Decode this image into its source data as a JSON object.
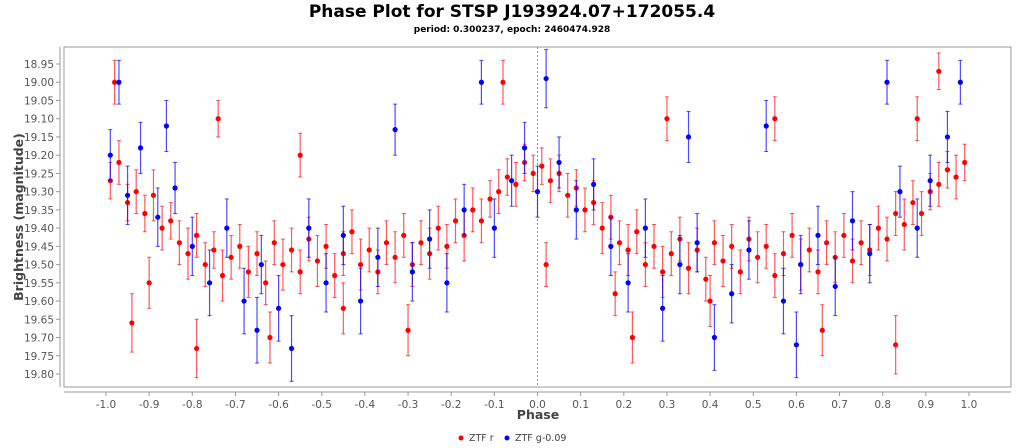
{
  "chart_data": {
    "type": "scatter",
    "title": "Phase Plot for STSP J193924.07+172055.4",
    "subtitle": "period: 0.300237, epoch: 2460474.928",
    "xlabel": "Phase",
    "ylabel": "Brightness (magnitude)",
    "xlim": [
      -1.08,
      1.09
    ],
    "ylim": [
      19.836,
      18.903
    ],
    "y_inverted": true,
    "xticks": [
      "-1.0",
      "-0.9",
      "-0.8",
      "-0.7",
      "-0.6",
      "-0.5",
      "-0.4",
      "-0.3",
      "-0.2",
      "-0.1",
      "0.0",
      "0.1",
      "0.2",
      "0.3",
      "0.4",
      "0.5",
      "0.6",
      "0.7",
      "0.8",
      "0.9",
      "1.0"
    ],
    "yticks": [
      "18.95",
      "19.00",
      "19.05",
      "19.10",
      "19.15",
      "19.20",
      "19.25",
      "19.30",
      "19.35",
      "19.40",
      "19.45",
      "19.50",
      "19.55",
      "19.60",
      "19.65",
      "19.70",
      "19.75",
      "19.80"
    ],
    "grid": false,
    "reference_line_phase": 0.0,
    "legend_position": "bottom-center",
    "series": [
      {
        "name": "ZTF r",
        "color": "#ff0000",
        "points_format": "[phase, magnitude, error]",
        "points": [
          [
            -0.99,
            19.27,
            0.05
          ],
          [
            -0.97,
            19.22,
            0.06
          ],
          [
            -0.95,
            19.33,
            0.05
          ],
          [
            -0.93,
            19.3,
            0.06
          ],
          [
            -0.91,
            19.36,
            0.05
          ],
          [
            -0.89,
            19.31,
            0.07
          ],
          [
            -0.87,
            19.4,
            0.06
          ],
          [
            -0.85,
            19.38,
            0.05
          ],
          [
            -0.83,
            19.44,
            0.06
          ],
          [
            -0.81,
            19.47,
            0.07
          ],
          [
            -0.79,
            19.42,
            0.06
          ],
          [
            -0.77,
            19.5,
            0.06
          ],
          [
            -0.75,
            19.46,
            0.05
          ],
          [
            -0.73,
            19.53,
            0.07
          ],
          [
            -0.71,
            19.48,
            0.06
          ],
          [
            -0.69,
            19.45,
            0.06
          ],
          [
            -0.67,
            19.52,
            0.07
          ],
          [
            -0.65,
            19.47,
            0.06
          ],
          [
            -0.63,
            19.55,
            0.06
          ],
          [
            -0.61,
            19.44,
            0.06
          ],
          [
            -0.59,
            19.5,
            0.07
          ],
          [
            -0.57,
            19.46,
            0.06
          ],
          [
            -0.55,
            19.52,
            0.06
          ],
          [
            -0.53,
            19.43,
            0.06
          ],
          [
            -0.51,
            19.49,
            0.07
          ],
          [
            -0.49,
            19.45,
            0.06
          ],
          [
            -0.47,
            19.53,
            0.06
          ],
          [
            -0.45,
            19.47,
            0.06
          ],
          [
            -0.43,
            19.41,
            0.06
          ],
          [
            -0.41,
            19.5,
            0.07
          ],
          [
            -0.39,
            19.46,
            0.06
          ],
          [
            -0.37,
            19.52,
            0.06
          ],
          [
            -0.35,
            19.44,
            0.06
          ],
          [
            -0.33,
            19.48,
            0.07
          ],
          [
            -0.31,
            19.42,
            0.06
          ],
          [
            -0.29,
            19.5,
            0.06
          ],
          [
            -0.27,
            19.44,
            0.06
          ],
          [
            -0.25,
            19.47,
            0.07
          ],
          [
            -0.23,
            19.4,
            0.06
          ],
          [
            -0.21,
            19.45,
            0.06
          ],
          [
            -0.19,
            19.38,
            0.06
          ],
          [
            -0.17,
            19.42,
            0.07
          ],
          [
            -0.15,
            19.35,
            0.06
          ],
          [
            -0.13,
            19.38,
            0.06
          ],
          [
            -0.11,
            19.32,
            0.05
          ],
          [
            -0.09,
            19.3,
            0.06
          ],
          [
            -0.07,
            19.26,
            0.05
          ],
          [
            -0.05,
            19.28,
            0.06
          ],
          [
            -0.03,
            19.22,
            0.05
          ],
          [
            -0.01,
            19.25,
            0.05
          ],
          [
            0.01,
            19.23,
            0.05
          ],
          [
            0.03,
            19.27,
            0.06
          ],
          [
            0.05,
            19.25,
            0.05
          ],
          [
            0.07,
            19.31,
            0.06
          ],
          [
            0.09,
            19.29,
            0.05
          ],
          [
            0.11,
            19.35,
            0.06
          ],
          [
            0.13,
            19.33,
            0.06
          ],
          [
            0.15,
            19.4,
            0.07
          ],
          [
            0.17,
            19.37,
            0.06
          ],
          [
            0.19,
            19.44,
            0.06
          ],
          [
            0.21,
            19.46,
            0.07
          ],
          [
            0.23,
            19.41,
            0.06
          ],
          [
            0.25,
            19.5,
            0.06
          ],
          [
            0.27,
            19.45,
            0.06
          ],
          [
            0.29,
            19.52,
            0.07
          ],
          [
            0.31,
            19.47,
            0.06
          ],
          [
            0.33,
            19.43,
            0.06
          ],
          [
            0.35,
            19.51,
            0.07
          ],
          [
            0.37,
            19.46,
            0.06
          ],
          [
            0.39,
            19.54,
            0.06
          ],
          [
            0.41,
            19.44,
            0.06
          ],
          [
            0.43,
            19.49,
            0.07
          ],
          [
            0.45,
            19.45,
            0.06
          ],
          [
            0.47,
            19.52,
            0.06
          ],
          [
            0.49,
            19.43,
            0.06
          ],
          [
            0.51,
            19.48,
            0.07
          ],
          [
            0.53,
            19.45,
            0.06
          ],
          [
            0.55,
            19.53,
            0.06
          ],
          [
            0.57,
            19.47,
            0.06
          ],
          [
            0.59,
            19.42,
            0.06
          ],
          [
            0.61,
            19.5,
            0.07
          ],
          [
            0.63,
            19.46,
            0.06
          ],
          [
            0.65,
            19.52,
            0.06
          ],
          [
            0.67,
            19.44,
            0.06
          ],
          [
            0.69,
            19.48,
            0.07
          ],
          [
            0.71,
            19.42,
            0.06
          ],
          [
            0.73,
            19.49,
            0.06
          ],
          [
            0.75,
            19.44,
            0.06
          ],
          [
            0.77,
            19.46,
            0.07
          ],
          [
            0.79,
            19.4,
            0.06
          ],
          [
            0.81,
            19.43,
            0.06
          ],
          [
            0.83,
            19.36,
            0.06
          ],
          [
            0.85,
            19.39,
            0.07
          ],
          [
            0.87,
            19.33,
            0.06
          ],
          [
            0.89,
            19.36,
            0.06
          ],
          [
            0.91,
            19.3,
            0.05
          ],
          [
            0.93,
            19.28,
            0.06
          ],
          [
            0.95,
            19.24,
            0.05
          ],
          [
            0.97,
            19.26,
            0.06
          ],
          [
            0.99,
            19.22,
            0.05
          ],
          [
            -0.74,
            19.1,
            0.05
          ],
          [
            -0.94,
            19.66,
            0.08
          ],
          [
            -0.79,
            19.73,
            0.08
          ],
          [
            -0.08,
            19.0,
            0.06
          ],
          [
            0.18,
            19.58,
            0.06
          ],
          [
            0.3,
            19.1,
            0.06
          ],
          [
            0.83,
            19.72,
            0.08
          ],
          [
            0.93,
            18.97,
            0.05
          ],
          [
            -0.62,
            19.7,
            0.07
          ],
          [
            0.55,
            19.1,
            0.06
          ],
          [
            -0.9,
            19.55,
            0.07
          ],
          [
            -0.45,
            19.62,
            0.07
          ],
          [
            0.02,
            19.5,
            0.06
          ],
          [
            0.66,
            19.68,
            0.07
          ],
          [
            -0.3,
            19.68,
            0.07
          ],
          [
            0.4,
            19.6,
            0.07
          ],
          [
            -0.55,
            19.2,
            0.06
          ],
          [
            0.22,
            19.7,
            0.07
          ],
          [
            0.88,
            19.1,
            0.06
          ],
          [
            -0.98,
            19.0,
            0.06
          ]
        ]
      },
      {
        "name": "ZTF g-0.09",
        "color": "#0000ff",
        "points_format": "[phase, magnitude, error]",
        "points": [
          [
            -0.99,
            19.2,
            0.07
          ],
          [
            -0.97,
            19.0,
            0.06
          ],
          [
            -0.95,
            19.31,
            0.08
          ],
          [
            -0.92,
            19.18,
            0.07
          ],
          [
            -0.88,
            19.37,
            0.08
          ],
          [
            -0.84,
            19.29,
            0.07
          ],
          [
            -0.8,
            19.45,
            0.08
          ],
          [
            -0.76,
            19.55,
            0.09
          ],
          [
            -0.72,
            19.4,
            0.08
          ],
          [
            -0.68,
            19.6,
            0.09
          ],
          [
            -0.64,
            19.5,
            0.08
          ],
          [
            -0.6,
            19.62,
            0.09
          ],
          [
            -0.57,
            19.73,
            0.09
          ],
          [
            -0.53,
            19.4,
            0.08
          ],
          [
            -0.49,
            19.55,
            0.08
          ],
          [
            -0.45,
            19.42,
            0.08
          ],
          [
            -0.41,
            19.6,
            0.09
          ],
          [
            -0.37,
            19.48,
            0.08
          ],
          [
            -0.33,
            19.13,
            0.07
          ],
          [
            -0.29,
            19.52,
            0.08
          ],
          [
            -0.25,
            19.43,
            0.08
          ],
          [
            -0.21,
            19.55,
            0.08
          ],
          [
            -0.17,
            19.35,
            0.07
          ],
          [
            -0.13,
            19.0,
            0.06
          ],
          [
            -0.1,
            19.4,
            0.08
          ],
          [
            -0.06,
            19.27,
            0.07
          ],
          [
            -0.03,
            19.18,
            0.07
          ],
          [
            0.0,
            19.3,
            0.07
          ],
          [
            0.02,
            18.99,
            0.08
          ],
          [
            0.05,
            19.22,
            0.07
          ],
          [
            0.09,
            19.35,
            0.08
          ],
          [
            0.13,
            19.28,
            0.07
          ],
          [
            0.17,
            19.45,
            0.08
          ],
          [
            0.21,
            19.55,
            0.08
          ],
          [
            0.25,
            19.4,
            0.08
          ],
          [
            0.29,
            19.62,
            0.09
          ],
          [
            0.33,
            19.5,
            0.08
          ],
          [
            0.37,
            19.44,
            0.08
          ],
          [
            0.41,
            19.7,
            0.09
          ],
          [
            0.45,
            19.58,
            0.08
          ],
          [
            0.49,
            19.46,
            0.08
          ],
          [
            0.53,
            19.12,
            0.07
          ],
          [
            0.57,
            19.6,
            0.09
          ],
          [
            0.61,
            19.5,
            0.08
          ],
          [
            0.65,
            19.42,
            0.08
          ],
          [
            0.69,
            19.56,
            0.08
          ],
          [
            0.73,
            19.38,
            0.08
          ],
          [
            0.77,
            19.47,
            0.08
          ],
          [
            0.81,
            19.0,
            0.06
          ],
          [
            0.84,
            19.3,
            0.07
          ],
          [
            0.88,
            19.4,
            0.08
          ],
          [
            0.91,
            19.27,
            0.07
          ],
          [
            0.95,
            19.15,
            0.07
          ],
          [
            0.98,
            19.0,
            0.06
          ],
          [
            -0.86,
            19.12,
            0.07
          ],
          [
            0.35,
            19.15,
            0.07
          ],
          [
            -0.65,
            19.68,
            0.09
          ],
          [
            0.6,
            19.72,
            0.09
          ]
        ]
      }
    ]
  }
}
